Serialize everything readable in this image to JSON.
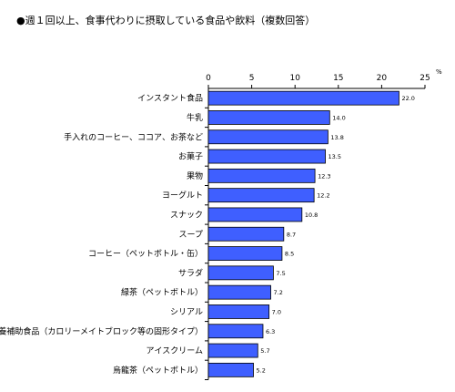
{
  "chart_data": {
    "type": "bar",
    "orientation": "horizontal",
    "title": "●週１回以上、食事代わりに摂取している食品や飲料（複数回答）",
    "unit": "%",
    "xlim": [
      0,
      25
    ],
    "xticks": [
      "0",
      "5",
      "10",
      "15",
      "20",
      "25"
    ],
    "grid": false,
    "bar_color": "#3F5FFF",
    "categories": [
      "インスタント食品",
      "牛乳",
      "手入れのコーヒー、ココア、お茶など",
      "お菓子",
      "果物",
      "ヨーグルト",
      "スナック",
      "スープ",
      "コーヒー（ペットボトル・缶）",
      "サラダ",
      "緑茶（ペットボトル）",
      "シリアル",
      "栄養補助食品（カロリーメイトブロック等の固形タイプ）",
      "アイスクリーム",
      "烏龍茶（ペットボトル）"
    ],
    "values": [
      22.0,
      14.0,
      13.8,
      13.5,
      12.3,
      12.2,
      10.8,
      8.7,
      8.5,
      7.5,
      7.2,
      7.0,
      6.3,
      5.7,
      5.2
    ],
    "value_labels": [
      "22.0",
      "14.0",
      "13.8",
      "13.5",
      "12.3",
      "12.2",
      "10.8",
      "8.7",
      "8.5",
      "7.5",
      "7.2",
      "7.0",
      "6.3",
      "5.7",
      "5.2"
    ]
  }
}
